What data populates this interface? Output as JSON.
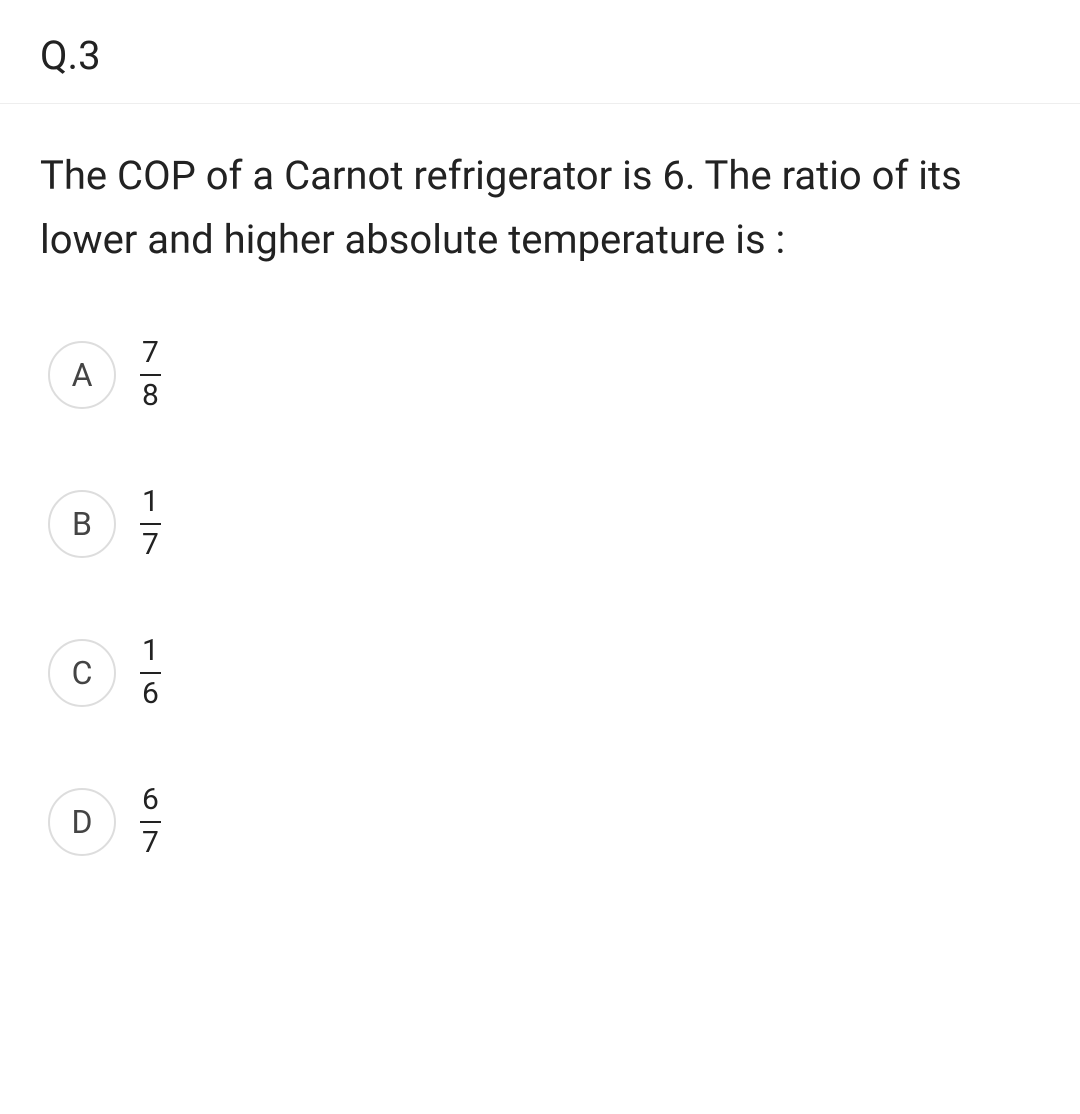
{
  "question": {
    "number": "Q.3",
    "text": "The COP of a Carnot refrigerator is 6. The ratio of its lower and higher absolute temperature is :",
    "options": [
      {
        "letter": "A",
        "numerator": "7",
        "denominator": "8"
      },
      {
        "letter": "B",
        "numerator": "1",
        "denominator": "7"
      },
      {
        "letter": "C",
        "numerator": "1",
        "denominator": "6"
      },
      {
        "letter": "D",
        "numerator": "6",
        "denominator": "7"
      }
    ]
  },
  "styling": {
    "font_color": "#222222",
    "border_color": "#dddddd",
    "divider_color": "#eeeeee",
    "background_color": "#ffffff",
    "question_number_fontsize": 40,
    "question_text_fontsize": 40,
    "option_letter_fontsize": 32,
    "fraction_fontsize": 30,
    "option_circle_diameter": 68,
    "option_gap": 72
  }
}
